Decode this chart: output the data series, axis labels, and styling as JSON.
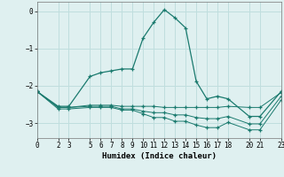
{
  "title": "",
  "xlabel": "Humidex (Indice chaleur)",
  "background_color": "#dff0f0",
  "grid_color": "#c0dede",
  "line_color": "#1a7a6e",
  "xlim": [
    0,
    23
  ],
  "ylim": [
    -3.4,
    0.25
  ],
  "yticks": [
    0,
    -1,
    -2,
    -3
  ],
  "xticks": [
    0,
    2,
    3,
    5,
    6,
    7,
    8,
    9,
    10,
    11,
    12,
    13,
    14,
    15,
    16,
    17,
    18,
    20,
    21,
    23
  ],
  "series": [
    {
      "x": [
        0,
        2,
        3,
        5,
        6,
        7,
        8,
        9,
        10,
        11,
        12,
        13,
        14,
        15,
        16,
        17,
        18,
        20,
        21,
        23
      ],
      "y": [
        -2.15,
        -2.55,
        -2.55,
        -1.75,
        -1.65,
        -1.6,
        -1.55,
        -1.55,
        -0.72,
        -0.3,
        0.04,
        -0.18,
        -0.45,
        -1.88,
        -2.35,
        -2.28,
        -2.35,
        -2.82,
        -2.82,
        -2.15
      ]
    },
    {
      "x": [
        0,
        2,
        3,
        5,
        6,
        7,
        8,
        9,
        10,
        11,
        12,
        13,
        14,
        15,
        16,
        17,
        18,
        20,
        21,
        23
      ],
      "y": [
        -2.15,
        -2.58,
        -2.58,
        -2.52,
        -2.52,
        -2.52,
        -2.55,
        -2.55,
        -2.55,
        -2.55,
        -2.58,
        -2.58,
        -2.58,
        -2.58,
        -2.58,
        -2.58,
        -2.55,
        -2.58,
        -2.58,
        -2.18
      ]
    },
    {
      "x": [
        0,
        2,
        3,
        5,
        6,
        7,
        8,
        9,
        10,
        11,
        12,
        13,
        14,
        15,
        16,
        17,
        18,
        20,
        21,
        23
      ],
      "y": [
        -2.15,
        -2.58,
        -2.58,
        -2.55,
        -2.55,
        -2.55,
        -2.62,
        -2.62,
        -2.68,
        -2.72,
        -2.72,
        -2.78,
        -2.78,
        -2.85,
        -2.88,
        -2.88,
        -2.82,
        -3.02,
        -3.02,
        -2.28
      ]
    },
    {
      "x": [
        0,
        2,
        3,
        5,
        6,
        7,
        8,
        9,
        10,
        11,
        12,
        13,
        14,
        15,
        16,
        17,
        18,
        20,
        21,
        23
      ],
      "y": [
        -2.15,
        -2.62,
        -2.62,
        -2.58,
        -2.58,
        -2.58,
        -2.65,
        -2.65,
        -2.75,
        -2.85,
        -2.85,
        -2.95,
        -2.95,
        -3.05,
        -3.12,
        -3.12,
        -2.98,
        -3.18,
        -3.18,
        -2.38
      ]
    }
  ]
}
